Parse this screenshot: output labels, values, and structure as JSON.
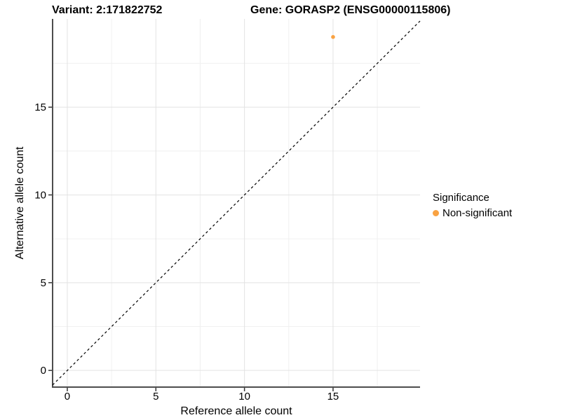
{
  "header": {
    "variant_title": "Variant: 2:171822752",
    "gene_title": "Gene: GORASP2 (ENSG00000115806)"
  },
  "legend": {
    "title": "Significance",
    "items": [
      {
        "label": "Non-significant",
        "color": "#F9A242"
      }
    ]
  },
  "chart_data": {
    "type": "scatter",
    "title": "Variant: 2:171822752   Gene: GORASP2 (ENSG00000115806)",
    "xlabel": "Reference allele count",
    "ylabel": "Alternative allele count",
    "xlim": [
      -0.83,
      19.91
    ],
    "ylim": [
      -0.95,
      20.03
    ],
    "x_major_ticks": [
      0,
      5,
      10,
      15
    ],
    "y_major_ticks": [
      0,
      5,
      10,
      15
    ],
    "x_minor_ticks": [
      2.5,
      7.5,
      12.5,
      17.5
    ],
    "y_minor_ticks": [
      2.5,
      7.5,
      12.5,
      17.5
    ],
    "grid": "major and minor gridlines on white background",
    "legend_position": "right",
    "series": [
      {
        "name": "Non-significant",
        "color": "#F9A242",
        "points": [
          {
            "x": 15,
            "y": 19
          }
        ]
      }
    ],
    "reference_line": {
      "kind": "identity y=x",
      "style": "dashed",
      "color": "#000000"
    }
  },
  "colors": {
    "background": "#FFFFFF",
    "grid_major": "#E3E3E3",
    "grid_minor": "#F0F0F0",
    "axis_line": "#4D4D4D",
    "tick": "#333333",
    "text": "#000000",
    "point": "#F9A242"
  }
}
